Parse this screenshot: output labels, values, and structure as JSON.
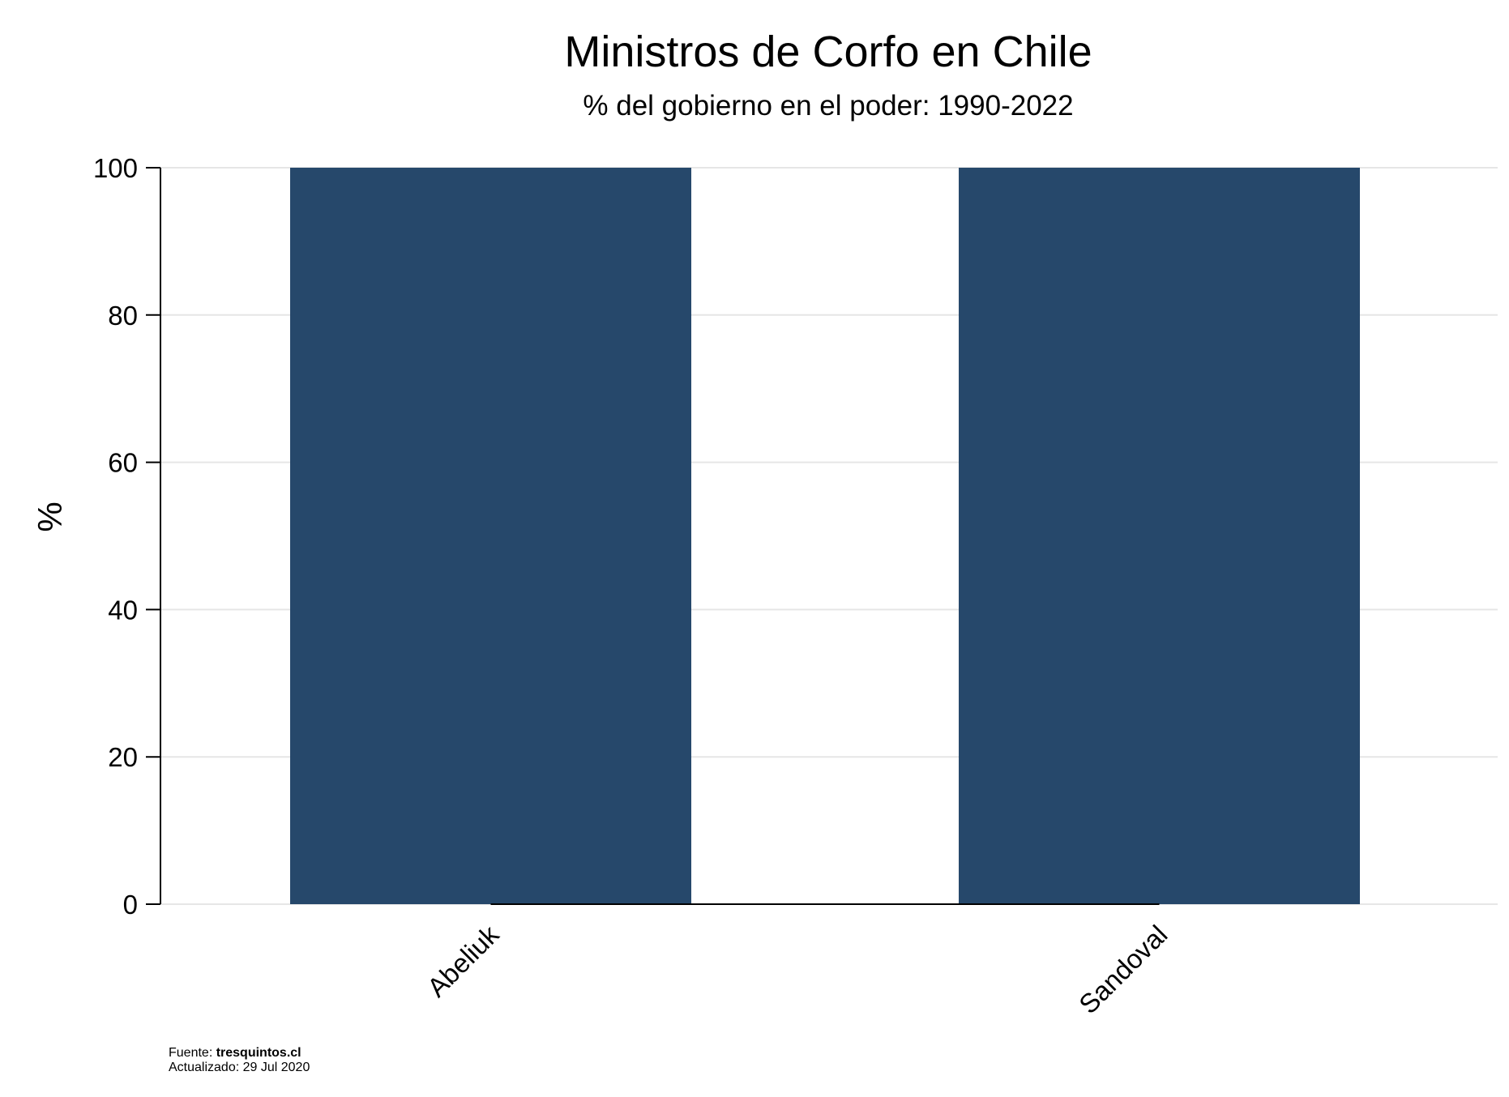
{
  "chart_data": {
    "type": "bar",
    "title": "Ministros de Corfo en Chile",
    "subtitle": "% del gobierno en el poder: 1990-2022",
    "ylabel": "%",
    "xlabel": "",
    "categories": [
      "Abeliuk",
      "Sandoval"
    ],
    "values": [
      100,
      100
    ],
    "ylim": [
      0,
      100
    ],
    "yticks": [
      0,
      20,
      40,
      60,
      80,
      100
    ],
    "grid": true,
    "legend": "none",
    "bar_color": "#26486b"
  },
  "footer": {
    "source_prefix": "Fuente: ",
    "source_name": "tresquintos.cl",
    "updated": "Actualizado: 29 Jul 2020"
  }
}
